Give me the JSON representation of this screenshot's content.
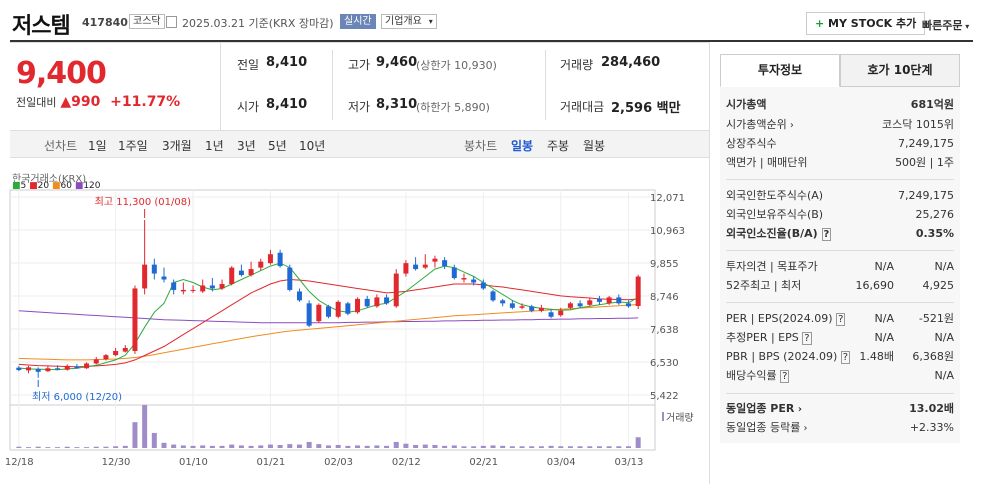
{
  "header": {
    "name": "저스템",
    "code": "417840",
    "market": "코스닥",
    "date": "2025.03.21 기준(KRX 장마감)",
    "live": "실시간",
    "company_info": "기업개요",
    "add_button": "MY STOCK 추가",
    "quick_order": "빠른주문"
  },
  "price": {
    "current": "9,400",
    "change_label": "전일대비",
    "change": "990",
    "change_pct": "+11.77%"
  },
  "quote": {
    "prev_label": "전일",
    "prev": "8,410",
    "open_label": "시가",
    "open": "8,410",
    "high_label": "고가",
    "high": "9,460",
    "upper_limit": "(상한가 10,930)",
    "low_label": "저가",
    "low": "8,310",
    "lower_limit": "(하한가 5,890)",
    "volume_label": "거래량",
    "volume": "284,460",
    "amount_label": "거래대금",
    "amount": "2,596 백만"
  },
  "periods": {
    "label": "선차트",
    "items": [
      "1일",
      "1주일",
      "3개월",
      "1년",
      "3년",
      "5년",
      "10년"
    ],
    "candle_label": "봉차트",
    "candle_items": [
      "일봉",
      "주봉",
      "월봉"
    ]
  },
  "tabs": [
    "투자정보",
    "호가 10단계"
  ],
  "invest": {
    "market_cap": {
      "k": "시가총액",
      "v": "681억원"
    },
    "rank": {
      "k": "시가총액순위",
      "v": "코스닥 1015위"
    },
    "shares": {
      "k": "상장주식수",
      "v": "7,249,175"
    },
    "face": {
      "k": "액면가 | 매매단위",
      "v": "500원 | 1주"
    },
    "foreign_limit": {
      "k": "외국인한도주식수(A)",
      "v": "7,249,175"
    },
    "foreign_hold": {
      "k": "외국인보유주식수(B)",
      "v": "25,276"
    },
    "foreign_ratio": {
      "k": "외국인소진율(B/A)",
      "v": "0.35%"
    },
    "opinion": {
      "k": "투자의견 | 목표주가",
      "v1": "N/A",
      "v2": "N/A"
    },
    "w52": {
      "k": "52주최고 | 최저",
      "v1": "16,690",
      "v2": "4,925"
    },
    "per": {
      "k": "PER | EPS(2024.09)",
      "v1": "N/A",
      "v2": "-521원"
    },
    "est": {
      "k": "추정PER | EPS",
      "v1": "N/A",
      "v2": "N/A"
    },
    "pbr": {
      "k": "PBR | BPS (2024.09)",
      "v1": "1.48배",
      "v2": "6,368원"
    },
    "div": {
      "k": "배당수익률",
      "v": "N/A"
    },
    "sector_per": {
      "k": "동일업종 PER",
      "v": "13.02배"
    },
    "sector_rate": {
      "k": "동일업종 등락률",
      "v": "+2.33%"
    }
  },
  "chart_data": {
    "type": "candlestick",
    "title": "한국거래소(KRX)",
    "ma_legend": [
      {
        "name": "5",
        "color": "#2eaa3c"
      },
      {
        "name": "20",
        "color": "#e0282e"
      },
      {
        "name": "60",
        "color": "#f08c1e"
      },
      {
        "name": "120",
        "color": "#8a4bc0"
      }
    ],
    "y_ticks": [
      "12,071",
      "10,963",
      "9,855",
      "8,746",
      "7,638",
      "6,530",
      "5,422"
    ],
    "ylim": [
      5422,
      12071
    ],
    "x_ticks": [
      "12/18",
      "12/30",
      "01/10",
      "01/21",
      "02/03",
      "02/12",
      "02/21",
      "03/04",
      "03/13"
    ],
    "high_annotation": "최고 11,300 (01/08)",
    "low_annotation": "최저 6,000 (12/20)",
    "volume_label": "거래량",
    "candles": [
      [
        6340,
        6260,
        6400,
        6220
      ],
      [
        6250,
        6350,
        6400,
        6150
      ],
      [
        6300,
        6200,
        6350,
        6000
      ],
      [
        6220,
        6320,
        6400,
        6200
      ],
      [
        6320,
        6280,
        6420,
        6250
      ],
      [
        6270,
        6400,
        6450,
        6240
      ],
      [
        6380,
        6320,
        6460,
        6300
      ],
      [
        6320,
        6480,
        6520,
        6300
      ],
      [
        6480,
        6620,
        6700,
        6450
      ],
      [
        6620,
        6760,
        6800,
        6580
      ],
      [
        6760,
        6900,
        7000,
        6720
      ],
      [
        6880,
        7000,
        7100,
        6850
      ],
      [
        6900,
        9000,
        9100,
        6800
      ],
      [
        9000,
        9800,
        11300,
        8800
      ],
      [
        9800,
        9500,
        10000,
        9300
      ],
      [
        9400,
        9300,
        9700,
        9200
      ],
      [
        9200,
        8950,
        9300,
        8800
      ],
      [
        8900,
        8950,
        9200,
        8800
      ],
      [
        8950,
        8950,
        9100,
        8850
      ],
      [
        8900,
        9100,
        9300,
        8850
      ],
      [
        9100,
        9000,
        9350,
        8900
      ],
      [
        9000,
        9150,
        9300,
        8950
      ],
      [
        9150,
        9700,
        9750,
        9100
      ],
      [
        9600,
        9450,
        9800,
        9400
      ],
      [
        9450,
        9650,
        9900,
        9400
      ],
      [
        9700,
        9900,
        10000,
        9600
      ],
      [
        9850,
        10150,
        10300,
        9800
      ],
      [
        10200,
        9750,
        10300,
        9700
      ],
      [
        9700,
        8950,
        9800,
        8900
      ],
      [
        8900,
        8600,
        9000,
        8550
      ],
      [
        8500,
        7750,
        8600,
        7700
      ],
      [
        7900,
        8450,
        8500,
        7850
      ],
      [
        8400,
        8050,
        8450,
        8000
      ],
      [
        8050,
        8550,
        8600,
        8000
      ],
      [
        8500,
        8150,
        8550,
        8100
      ],
      [
        8200,
        8650,
        8700,
        8150
      ],
      [
        8650,
        8400,
        8750,
        8350
      ],
      [
        8400,
        8700,
        8800,
        8350
      ],
      [
        8700,
        8500,
        8800,
        8450
      ],
      [
        8400,
        9500,
        9650,
        8350
      ],
      [
        9500,
        9850,
        9950,
        9400
      ],
      [
        9800,
        9650,
        10050,
        9600
      ],
      [
        9700,
        9800,
        10150,
        9650
      ],
      [
        9900,
        10000,
        10100,
        9700
      ],
      [
        9950,
        9750,
        10050,
        9650
      ],
      [
        9700,
        9350,
        9800,
        9300
      ],
      [
        9300,
        9350,
        9500,
        9200
      ],
      [
        9300,
        9200,
        9400,
        9100
      ],
      [
        9200,
        9000,
        9300,
        8950
      ],
      [
        8900,
        8600,
        8950,
        8550
      ],
      [
        8600,
        8500,
        8650,
        8400
      ],
      [
        8500,
        8350,
        8600,
        8300
      ],
      [
        8350,
        8400,
        8500,
        8300
      ],
      [
        8400,
        8250,
        8450,
        8200
      ],
      [
        8250,
        8350,
        8450,
        8200
      ],
      [
        8200,
        8050,
        8300,
        8000
      ],
      [
        8100,
        8250,
        8350,
        8050
      ],
      [
        8350,
        8500,
        8550,
        8300
      ],
      [
        8500,
        8400,
        8600,
        8350
      ],
      [
        8450,
        8600,
        8700,
        8400
      ],
      [
        8650,
        8550,
        8750,
        8450
      ],
      [
        8500,
        8700,
        8750,
        8450
      ],
      [
        8700,
        8500,
        8800,
        8450
      ],
      [
        8500,
        8400,
        8600,
        8350
      ],
      [
        8410,
        9400,
        9460,
        8310
      ]
    ],
    "ma5": [
      6330,
      6300,
      6290,
      6280,
      6270,
      6300,
      6320,
      6370,
      6420,
      6510,
      6600,
      6760,
      7150,
      7700,
      8200,
      8500,
      9200,
      9300,
      9200,
      9050,
      8950,
      9000,
      9150,
      9300,
      9450,
      9600,
      9750,
      9850,
      9700,
      9300,
      8900,
      8600,
      8400,
      8250,
      8200,
      8250,
      8350,
      8450,
      8500,
      8700,
      8900,
      9150,
      9400,
      9650,
      9750,
      9700,
      9550,
      9400,
      9200,
      9000,
      8800,
      8600,
      8450,
      8380,
      8330,
      8300,
      8270,
      8280,
      8350,
      8400,
      8450,
      8500,
      8550,
      8520,
      8700
    ],
    "ma20": [
      6450,
      6430,
      6410,
      6400,
      6390,
      6380,
      6370,
      6380,
      6400,
      6420,
      6450,
      6500,
      6600,
      6750,
      6900,
      7050,
      7250,
      7450,
      7650,
      7850,
      8050,
      8250,
      8450,
      8650,
      8850,
      9000,
      9150,
      9250,
      9300,
      9280,
      9250,
      9200,
      9150,
      9100,
      9050,
      9000,
      8950,
      8900,
      8850,
      8870,
      8900,
      8950,
      9000,
      9050,
      9100,
      9150,
      9150,
      9150,
      9120,
      9080,
      9050,
      9000,
      8950,
      8900,
      8850,
      8800,
      8750,
      8720,
      8700,
      8680,
      8650,
      8640,
      8630,
      8620,
      8650
    ],
    "ma60": [
      6650,
      6640,
      6630,
      6620,
      6610,
      6600,
      6600,
      6600,
      6610,
      6620,
      6630,
      6650,
      6680,
      6720,
      6780,
      6840,
      6900,
      6960,
      7020,
      7080,
      7140,
      7200,
      7260,
      7320,
      7380,
      7430,
      7480,
      7530,
      7570,
      7600,
      7630,
      7660,
      7690,
      7720,
      7750,
      7780,
      7810,
      7840,
      7870,
      7900,
      7930,
      7960,
      7990,
      8020,
      8050,
      8080,
      8100,
      8120,
      8140,
      8160,
      8180,
      8200,
      8220,
      8240,
      8260,
      8280,
      8300,
      8320,
      8340,
      8360,
      8380,
      8400,
      8420,
      8440,
      8460
    ],
    "ma120": [
      8250,
      8230,
      8210,
      8190,
      8170,
      8150,
      8130,
      8110,
      8090,
      8070,
      8050,
      8030,
      8010,
      7990,
      7970,
      7950,
      7940,
      7930,
      7920,
      7910,
      7900,
      7890,
      7880,
      7870,
      7860,
      7850,
      7850,
      7850,
      7850,
      7850,
      7850,
      7850,
      7850,
      7850,
      7860,
      7860,
      7870,
      7870,
      7880,
      7880,
      7890,
      7890,
      7900,
      7900,
      7910,
      7910,
      7920,
      7920,
      7930,
      7930,
      7940,
      7940,
      7950,
      7950,
      7960,
      7960,
      7970,
      7970,
      7980,
      7980,
      7990,
      7990,
      8000,
      8000,
      8010
    ],
    "volume": [
      3,
      2,
      3,
      2,
      2,
      3,
      2,
      2,
      3,
      3,
      4,
      5,
      60,
      100,
      35,
      12,
      8,
      6,
      5,
      6,
      5,
      5,
      8,
      6,
      5,
      6,
      8,
      7,
      9,
      8,
      14,
      9,
      6,
      7,
      5,
      6,
      5,
      6,
      5,
      14,
      10,
      7,
      8,
      7,
      5,
      6,
      4,
      4,
      5,
      6,
      5,
      4,
      4,
      4,
      4,
      5,
      4,
      4,
      4,
      4,
      4,
      4,
      4,
      4,
      25
    ]
  }
}
